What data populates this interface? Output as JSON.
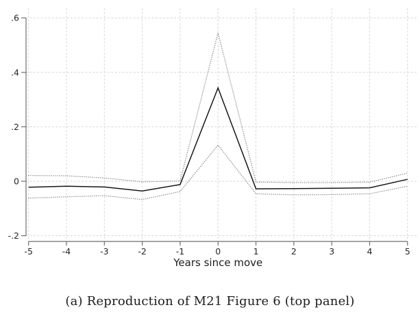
{
  "caption": {
    "text": "(a) Reproduction of M21 Figure 6 (top panel)"
  },
  "chart_data": {
    "type": "line",
    "title": "",
    "xlabel": "Years since move",
    "ylabel": "",
    "x": [
      -5,
      -4,
      -3,
      -2,
      -1,
      0,
      1,
      2,
      3,
      4,
      5
    ],
    "series": [
      {
        "name": "point-estimate",
        "style": "solid",
        "values": [
          -0.022,
          -0.018,
          -0.021,
          -0.036,
          -0.012,
          0.343,
          -0.028,
          -0.027,
          -0.026,
          -0.024,
          0.007
        ]
      },
      {
        "name": "ci-upper",
        "style": "dotted",
        "values": [
          0.021,
          0.02,
          0.012,
          -0.002,
          0.001,
          0.545,
          -0.003,
          -0.005,
          -0.005,
          -0.003,
          0.03
        ]
      },
      {
        "name": "ci-lower",
        "style": "dotted",
        "values": [
          -0.062,
          -0.057,
          -0.053,
          -0.067,
          -0.038,
          0.133,
          -0.046,
          -0.05,
          -0.049,
          -0.046,
          -0.018
        ]
      }
    ],
    "xtick_labels": [
      "-5",
      "-4",
      "-3",
      "-2",
      "-1",
      "0",
      "1",
      "2",
      "3",
      "4",
      "5"
    ],
    "yticks": [
      -0.2,
      0,
      0.2,
      0.4,
      0.6
    ],
    "ytick_labels": [
      "-.2",
      "0",
      ".2",
      ".4",
      ".6"
    ],
    "xlim": [
      -5,
      5
    ],
    "ylim": [
      -0.22,
      0.64
    ],
    "grid": "dashed horizontal and vertical at every tick",
    "legend": "none",
    "colors": {
      "line": "#161616",
      "ci": "#8f8f8f",
      "grid": "#d6d6d6",
      "axis": "#6e6e6e",
      "tick_label": "#262626",
      "background": "#ffffff"
    }
  }
}
